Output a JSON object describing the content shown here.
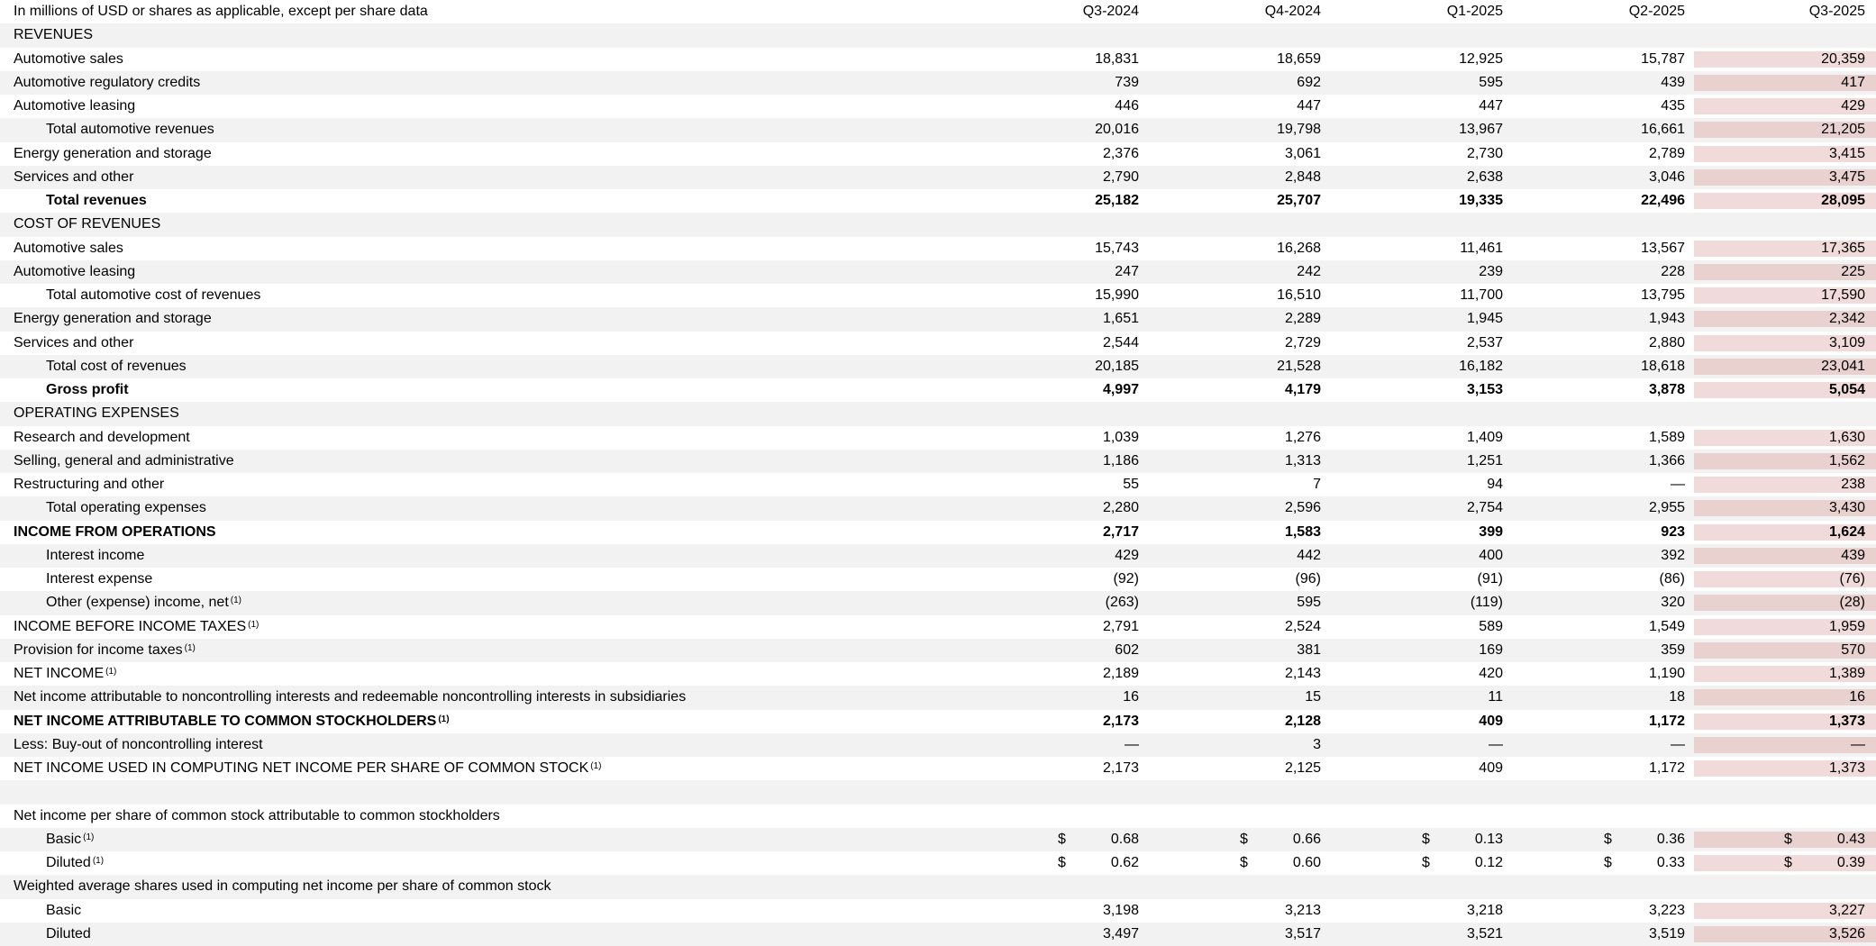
{
  "table": {
    "currency_symbol": "$",
    "highlight_color": "#f1dbda",
    "stripe_color": "#f2f2f2",
    "header": {
      "label": "In millions of USD or shares as applicable, except per share data",
      "columns": [
        "Q3-2024",
        "Q4-2024",
        "Q1-2025",
        "Q2-2025",
        "Q3-2025"
      ]
    },
    "rows": [
      {
        "label": "REVENUES",
        "section": true
      },
      {
        "label": "Automotive sales",
        "values": [
          "18,831",
          "18,659",
          "12,925",
          "15,787",
          "20,359"
        ]
      },
      {
        "label": "Automotive regulatory credits",
        "values": [
          "739",
          "692",
          "595",
          "439",
          "417"
        ]
      },
      {
        "label": "Automotive leasing",
        "values": [
          "446",
          "447",
          "447",
          "435",
          "429"
        ]
      },
      {
        "label": "Total automotive revenues",
        "indent": 1,
        "values": [
          "20,016",
          "19,798",
          "13,967",
          "16,661",
          "21,205"
        ]
      },
      {
        "label": "Energy generation and storage",
        "values": [
          "2,376",
          "3,061",
          "2,730",
          "2,789",
          "3,415"
        ]
      },
      {
        "label": "Services and other",
        "values": [
          "2,790",
          "2,848",
          "2,638",
          "3,046",
          "3,475"
        ]
      },
      {
        "label": "Total revenues",
        "indent": 1,
        "bold": true,
        "values": [
          "25,182",
          "25,707",
          "19,335",
          "22,496",
          "28,095"
        ]
      },
      {
        "label": "COST OF REVENUES",
        "section": true
      },
      {
        "label": "Automotive sales",
        "values": [
          "15,743",
          "16,268",
          "11,461",
          "13,567",
          "17,365"
        ]
      },
      {
        "label": "Automotive leasing",
        "values": [
          "247",
          "242",
          "239",
          "228",
          "225"
        ]
      },
      {
        "label": "Total automotive cost of revenues",
        "indent": 1,
        "values": [
          "15,990",
          "16,510",
          "11,700",
          "13,795",
          "17,590"
        ]
      },
      {
        "label": "Energy generation and storage",
        "values": [
          "1,651",
          "2,289",
          "1,945",
          "1,943",
          "2,342"
        ]
      },
      {
        "label": "Services and other",
        "values": [
          "2,544",
          "2,729",
          "2,537",
          "2,880",
          "3,109"
        ]
      },
      {
        "label": "Total cost of revenues",
        "indent": 1,
        "values": [
          "20,185",
          "21,528",
          "16,182",
          "18,618",
          "23,041"
        ]
      },
      {
        "label": "Gross profit",
        "indent": 1,
        "bold": true,
        "values": [
          "4,997",
          "4,179",
          "3,153",
          "3,878",
          "5,054"
        ]
      },
      {
        "label": "OPERATING EXPENSES",
        "section": true
      },
      {
        "label": "Research and development",
        "values": [
          "1,039",
          "1,276",
          "1,409",
          "1,589",
          "1,630"
        ]
      },
      {
        "label": "Selling, general and administrative",
        "values": [
          "1,186",
          "1,313",
          "1,251",
          "1,366",
          "1,562"
        ]
      },
      {
        "label": "Restructuring and other",
        "values": [
          "55",
          "7",
          "94",
          "—",
          "238"
        ]
      },
      {
        "label": "Total operating expenses",
        "indent": 1,
        "values": [
          "2,280",
          "2,596",
          "2,754",
          "2,955",
          "3,430"
        ]
      },
      {
        "label": "INCOME FROM OPERATIONS",
        "bold": true,
        "values": [
          "2,717",
          "1,583",
          "399",
          "923",
          "1,624"
        ]
      },
      {
        "label": "Interest income",
        "indent": 1,
        "values": [
          "429",
          "442",
          "400",
          "392",
          "439"
        ]
      },
      {
        "label": "Interest expense",
        "indent": 1,
        "values": [
          "(92)",
          "(96)",
          "(91)",
          "(86)",
          "(76)"
        ]
      },
      {
        "label": "Other (expense) income, net",
        "indent": 1,
        "sup": "(1)",
        "values": [
          "(263)",
          "595",
          "(119)",
          "320",
          "(28)"
        ]
      },
      {
        "label": "INCOME BEFORE INCOME TAXES",
        "sup": "(1)",
        "values": [
          "2,791",
          "2,524",
          "589",
          "1,549",
          "1,959"
        ]
      },
      {
        "label": "Provision for income taxes",
        "sup": "(1)",
        "values": [
          "602",
          "381",
          "169",
          "359",
          "570"
        ]
      },
      {
        "label": "NET INCOME",
        "sup": "(1)",
        "values": [
          "2,189",
          "2,143",
          "420",
          "1,190",
          "1,389"
        ]
      },
      {
        "label": "Net income attributable to noncontrolling interests and redeemable noncontrolling interests in subsidiaries",
        "values": [
          "16",
          "15",
          "11",
          "18",
          "16"
        ]
      },
      {
        "label": "NET INCOME ATTRIBUTABLE TO COMMON STOCKHOLDERS",
        "sup": "(1)",
        "bold": true,
        "values": [
          "2,173",
          "2,128",
          "409",
          "1,172",
          "1,373"
        ]
      },
      {
        "label": "Less: Buy-out of noncontrolling interest",
        "values": [
          "—",
          "3",
          "—",
          "—",
          "—"
        ]
      },
      {
        "label": "NET INCOME USED IN COMPUTING NET INCOME PER SHARE OF COMMON STOCK",
        "sup": "(1)",
        "values": [
          "2,173",
          "2,125",
          "409",
          "1,172",
          "1,373"
        ]
      },
      {
        "blank": true
      },
      {
        "label": "Net income per share of common stock attributable to common stockholders"
      },
      {
        "label": "Basic",
        "indent": 1,
        "sup": "(1)",
        "currency": true,
        "values": [
          "0.68",
          "0.66",
          "0.13",
          "0.36",
          "0.43"
        ]
      },
      {
        "label": "Diluted",
        "indent": 1,
        "sup": "(1)",
        "currency": true,
        "values": [
          "0.62",
          "0.60",
          "0.12",
          "0.33",
          "0.39"
        ]
      },
      {
        "label": "Weighted average shares used in computing net income per share of common stock"
      },
      {
        "label": "Basic",
        "indent": 1,
        "values": [
          "3,198",
          "3,213",
          "3,218",
          "3,223",
          "3,227"
        ]
      },
      {
        "label": "Diluted",
        "indent": 1,
        "values": [
          "3,497",
          "3,517",
          "3,521",
          "3,519",
          "3,526"
        ]
      }
    ]
  }
}
